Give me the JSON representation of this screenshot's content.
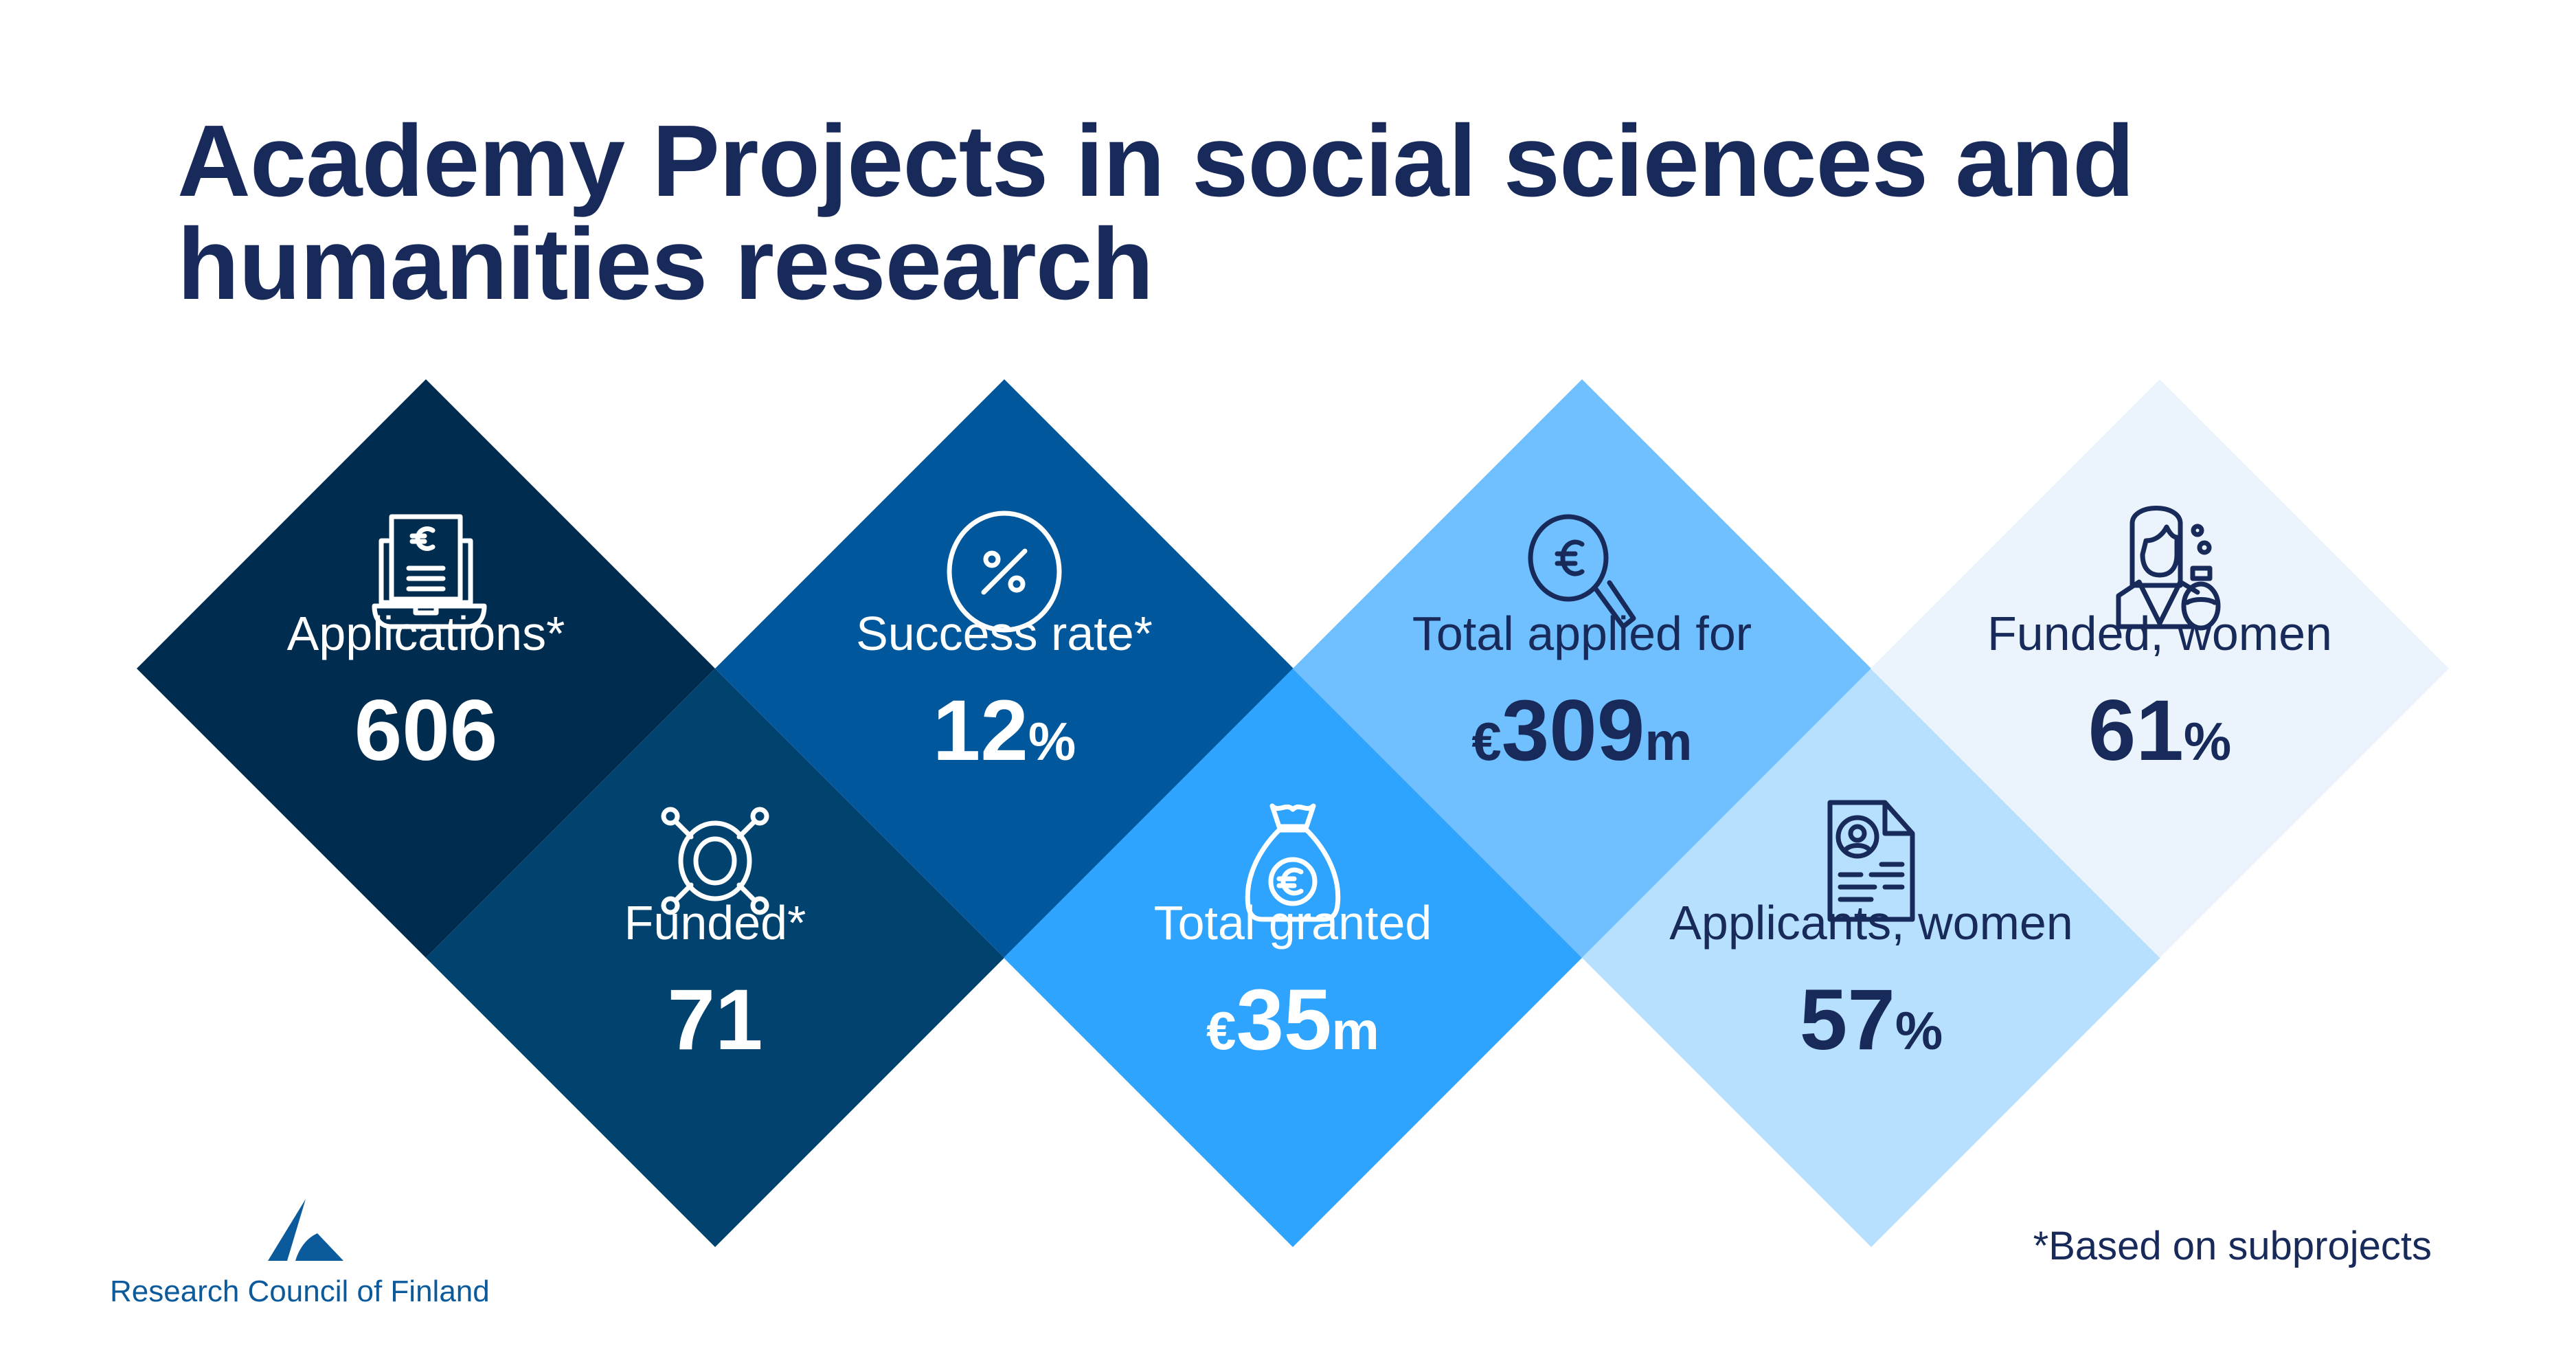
{
  "title": {
    "line1": "Academy Projects in social sciences and",
    "line2": "humanities research"
  },
  "colors": {
    "d1": "#002d4f",
    "d2": "#01426f",
    "d3": "#01579b",
    "d4": "#2fa4ff",
    "d5": "#70c0ff",
    "d6": "#b7e0ff",
    "d7": "#ebf4fd",
    "navy": "#172a5a"
  },
  "stats": [
    {
      "label": "Applications*",
      "prefix": "",
      "number": "606",
      "suffix": "",
      "icon": "laptop-invoice-icon"
    },
    {
      "label": "Funded*",
      "prefix": "",
      "number": "71",
      "suffix": "",
      "icon": "network-ring-icon"
    },
    {
      "label": "Success rate*",
      "prefix": "",
      "number": "12",
      "suffix": "%",
      "icon": "percent-circle-icon"
    },
    {
      "label": "Total granted",
      "prefix": "€",
      "number": "35",
      "suffix": "m",
      "icon": "money-bag-icon"
    },
    {
      "label": "Total applied for",
      "prefix": "€",
      "number": "309",
      "suffix": "m",
      "icon": "euro-magnifier-icon"
    },
    {
      "label": "Applicants, women",
      "prefix": "",
      "number": "57",
      "suffix": "%",
      "icon": "resume-document-icon"
    },
    {
      "label": "Funded, women",
      "prefix": "",
      "number": "61",
      "suffix": "%",
      "icon": "woman-scientist-icon"
    }
  ],
  "footnote": "*Based on subprojects",
  "logo": {
    "text": "Research Council of Finland"
  }
}
